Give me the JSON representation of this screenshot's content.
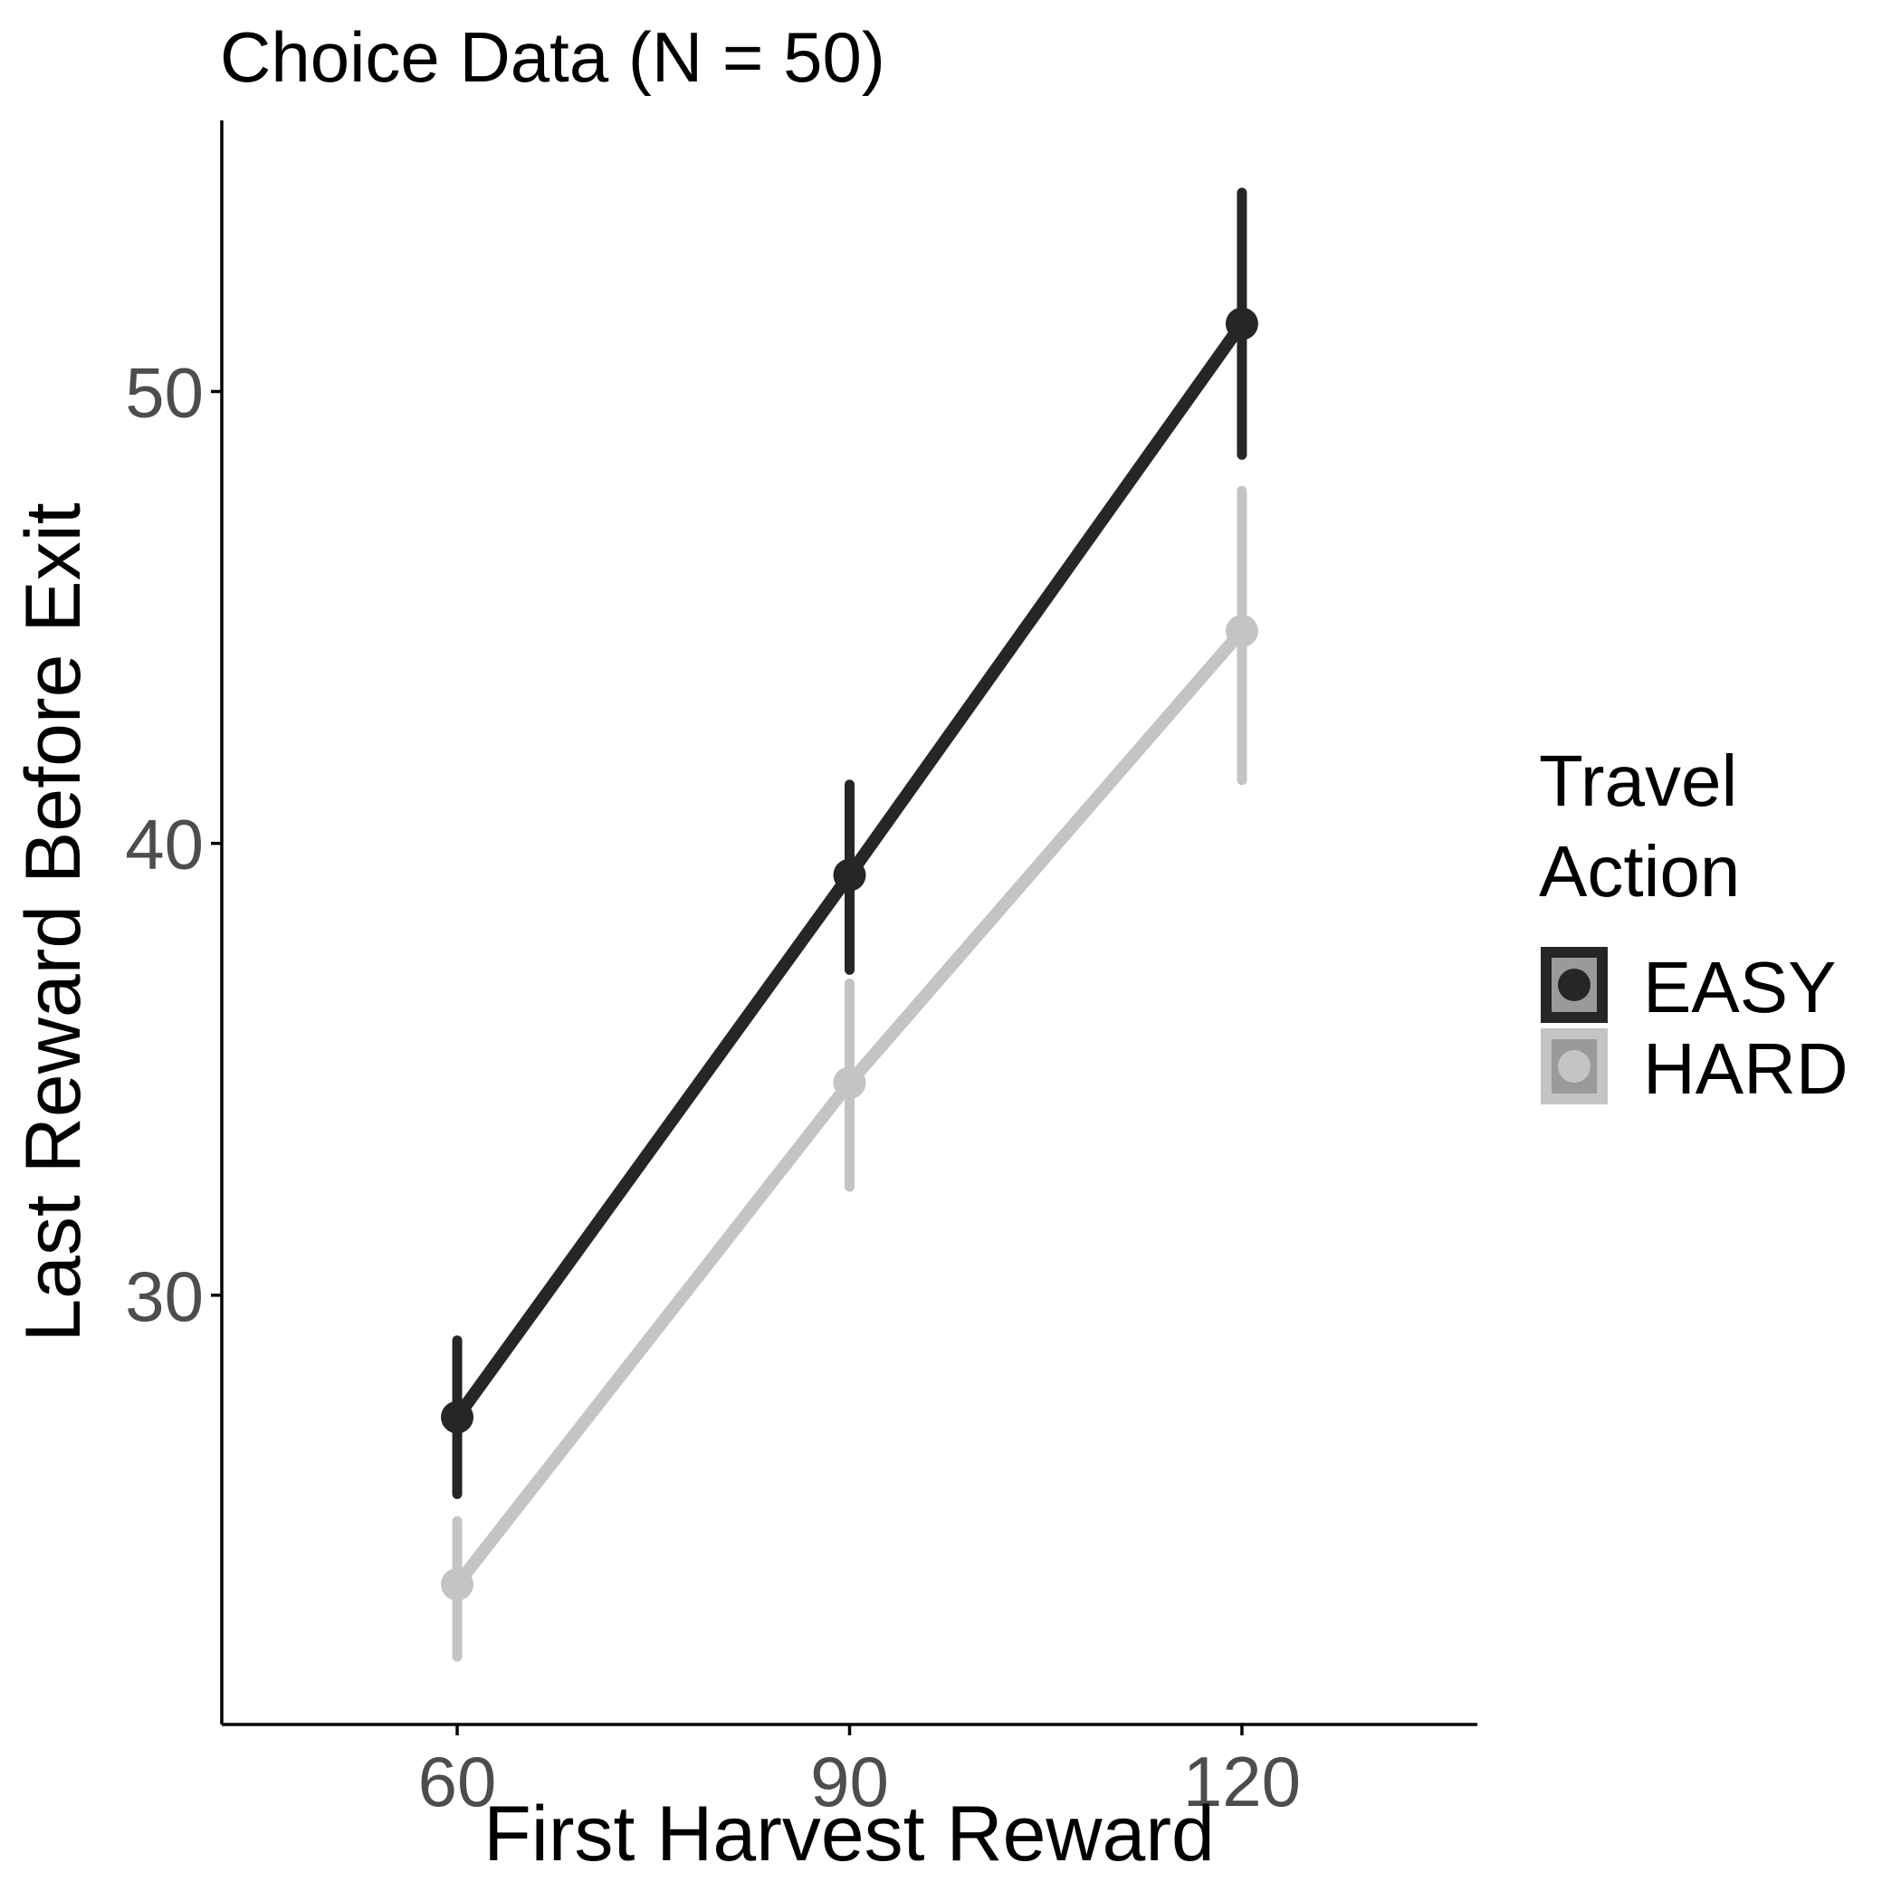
{
  "chart_data": {
    "type": "line",
    "title": "Choice Data (N = 50)",
    "xlabel": "First Harvest Reward",
    "ylabel": "Last Reward Before Exit",
    "x": [
      60,
      90,
      120
    ],
    "xticks": [
      "60",
      "90",
      "120"
    ],
    "yticks": [
      "30",
      "40",
      "50"
    ],
    "xlim": [
      42,
      138
    ],
    "ylim": [
      20.5,
      56
    ],
    "grid": false,
    "legend_title": "Travel Action",
    "legend_placement": "right",
    "series": [
      {
        "name": "EASY",
        "color": "#262626",
        "values": [
          27.3,
          39.3,
          51.5
        ],
        "error_low": [
          25.6,
          37.2,
          48.6
        ],
        "error_high": [
          29.0,
          41.3,
          54.4
        ]
      },
      {
        "name": "HARD",
        "color": "#c4c4c4",
        "values": [
          23.6,
          34.7,
          44.7
        ],
        "error_low": [
          22.0,
          32.4,
          41.4
        ],
        "error_high": [
          25.0,
          36.9,
          47.8
        ]
      }
    ]
  }
}
